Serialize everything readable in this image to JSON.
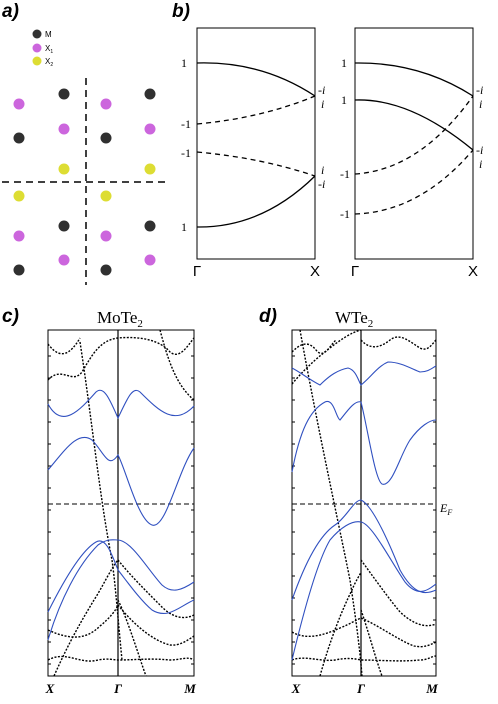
{
  "panels": {
    "a": {
      "label": "a)",
      "legend": [
        {
          "name": "M",
          "sub": "",
          "color": "#303030"
        },
        {
          "name": "X",
          "sub": "1",
          "color": "#cc66dd"
        },
        {
          "name": "X",
          "sub": "2",
          "color": "#dddd33"
        }
      ]
    },
    "b": {
      "label": "b)",
      "left": {
        "k_start": "Γ",
        "k_end": "X",
        "parities_left": [
          "1",
          "-1",
          "-1",
          "1"
        ],
        "parities_right": [
          "-i",
          "i",
          "i",
          "-i"
        ]
      },
      "right": {
        "k_start": "Γ",
        "k_end": "X",
        "parities_left": [
          "1",
          "1",
          "-1",
          "-1"
        ],
        "parities_right": [
          "-i",
          "i",
          "-i",
          "i"
        ]
      }
    },
    "c": {
      "label": "c)",
      "title_main": "MoTe",
      "title_sub": "2",
      "k_labels": [
        "X",
        "Γ",
        "M"
      ]
    },
    "d": {
      "label": "d)",
      "title_main": "WTe",
      "title_sub": "2",
      "k_labels": [
        "X",
        "Γ",
        "M"
      ],
      "fermi_main": "E",
      "fermi_sub": "F"
    }
  },
  "colors": {
    "band_highlight": "#3050c0",
    "band_other": "#000000"
  }
}
